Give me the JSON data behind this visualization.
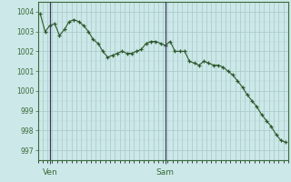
{
  "pressure": [
    1003.9,
    1003.0,
    1003.3,
    1003.4,
    1002.8,
    1003.1,
    1003.5,
    1003.6,
    1003.5,
    1003.3,
    1003.0,
    1002.6,
    1002.4,
    1002.0,
    1001.7,
    1001.8,
    1001.9,
    1002.0,
    1001.9,
    1001.9,
    1002.0,
    1002.1,
    1002.4,
    1002.5,
    1002.5,
    1002.4,
    1002.3,
    1002.5,
    1002.0,
    1002.0,
    1002.0,
    1001.5,
    1001.4,
    1001.3,
    1001.5,
    1001.4,
    1001.3,
    1001.3,
    1001.2,
    1001.0,
    1000.8,
    1000.5,
    1000.2,
    999.8,
    999.5,
    999.2,
    998.8,
    998.5,
    998.2,
    997.8,
    997.5,
    997.4
  ],
  "n_points": 52,
  "ven_tick": 2,
  "sam_tick": 26,
  "ylim": [
    996.5,
    1004.5
  ],
  "yticks": [
    997,
    998,
    999,
    1000,
    1001,
    1002,
    1003,
    1004
  ],
  "bg_color": "#cce8e8",
  "grid_color_major": "#a8c8c8",
  "grid_color_minor": "#b8d4d4",
  "line_color": "#2d5a2d",
  "marker_color": "#2d5a2d",
  "tick_label_color": "#3a6b3a",
  "axis_color": "#3a6b3a",
  "vline_color": "#3a3a5a",
  "ven_label": "Ven",
  "sam_label": "Sam",
  "label_fontsize": 6.5,
  "ytick_fontsize": 5.5
}
